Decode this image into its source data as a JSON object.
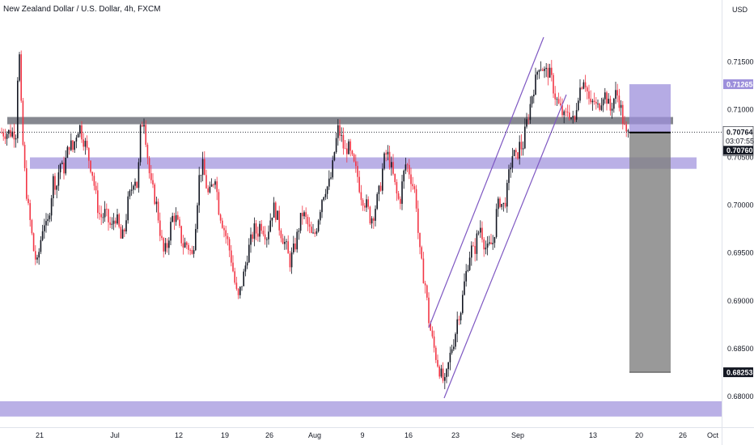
{
  "header": {
    "title": "New Zealand Dollar / U.S. Dollar, 4h, FXCM",
    "currency": "USD"
  },
  "colors": {
    "up": "#131722",
    "down": "#f23645",
    "zone": "#9c8fdb",
    "resistance": "#5d606b",
    "channel": "#7e57c2",
    "target_box": "#7f7f7f",
    "stop_box": "#9c8fdb"
  },
  "chart_data": {
    "type": "candlestick",
    "title": "New Zealand Dollar / U.S. Dollar, 4h, FXCM",
    "y_axis": {
      "unit": "USD",
      "ticks": [
        "0.71500",
        "0.71000",
        "0.70500",
        "0.70000",
        "0.69500",
        "0.69000",
        "0.68500",
        "0.68000"
      ],
      "range": [
        0.6775,
        0.7185
      ]
    },
    "x_axis": {
      "ticks": [
        "21",
        "Jul",
        "12",
        "19",
        "26",
        "Aug",
        "9",
        "16",
        "23",
        "Sep",
        "13",
        "20",
        "26",
        "Oct"
      ]
    },
    "price_labels": {
      "stop": "0.71265",
      "current": "0.70764",
      "countdown": "03:07:55",
      "entry": "0.70760",
      "target": "0.68253"
    },
    "levels": {
      "resistance": 0.7088,
      "support_zone": [
        0.7038,
        0.705
      ],
      "bottom_zone": [
        0.6779,
        0.6795
      ]
    },
    "trade": {
      "entry": 0.7076,
      "stop": 0.71265,
      "target": 0.68253
    },
    "path": [
      [
        21,
        0.7128
      ],
      [
        24,
        0.7155
      ],
      [
        27,
        0.7082
      ],
      [
        30,
        0.704
      ],
      [
        34,
        0.7002
      ],
      [
        38,
        0.6978
      ],
      [
        42,
        0.695
      ],
      [
        46,
        0.6938
      ],
      [
        50,
        0.6962
      ],
      [
        54,
        0.6985
      ],
      [
        58,
        0.6973
      ],
      [
        62,
        0.7001
      ],
      [
        66,
        0.7028
      ],
      [
        70,
        0.702
      ],
      [
        74,
        0.7045
      ],
      [
        78,
        0.7035
      ],
      [
        82,
        0.705
      ],
      [
        86,
        0.7066
      ],
      [
        90,
        0.7058
      ],
      [
        94,
        0.7074
      ],
      [
        98,
        0.7084
      ],
      [
        102,
        0.7072
      ],
      [
        106,
        0.7062
      ],
      [
        110,
        0.7048
      ],
      [
        114,
        0.7035
      ],
      [
        118,
        0.7012
      ],
      [
        122,
        0.6992
      ],
      [
        126,
        0.6987
      ],
      [
        130,
        0.6992
      ],
      [
        134,
        0.6983
      ],
      [
        138,
        0.6975
      ],
      [
        142,
        0.699
      ],
      [
        146,
        0.698
      ],
      [
        150,
        0.6962
      ],
      [
        154,
        0.6975
      ],
      [
        158,
        0.7002
      ],
      [
        162,
        0.7015
      ],
      [
        166,
        0.7032
      ],
      [
        170,
        0.7018
      ],
      [
        174,
        0.7084
      ],
      [
        178,
        0.709
      ],
      [
        182,
        0.7055
      ],
      [
        186,
        0.7022
      ],
      [
        190,
        0.7012
      ],
      [
        194,
        0.6998
      ],
      [
        198,
        0.6972
      ],
      [
        202,
        0.695
      ],
      [
        206,
        0.6955
      ],
      [
        210,
        0.6975
      ],
      [
        214,
        0.699
      ],
      [
        218,
        0.6985
      ],
      [
        222,
        0.6972
      ],
      [
        226,
        0.6958
      ],
      [
        230,
        0.696
      ],
      [
        234,
        0.6955
      ],
      [
        238,
        0.6945
      ],
      [
        242,
        0.6985
      ],
      [
        246,
        0.7028
      ],
      [
        250,
        0.7043
      ],
      [
        254,
        0.7025
      ],
      [
        258,
        0.7008
      ],
      [
        262,
        0.702
      ],
      [
        266,
        0.7032
      ],
      [
        270,
        0.6998
      ],
      [
        274,
        0.6985
      ],
      [
        278,
        0.6972
      ],
      [
        282,
        0.696
      ],
      [
        286,
        0.6943
      ],
      [
        290,
        0.692
      ],
      [
        294,
        0.69
      ],
      [
        298,
        0.6915
      ],
      [
        302,
        0.693
      ],
      [
        306,
        0.695
      ],
      [
        310,
        0.6962
      ],
      [
        314,
        0.6975
      ],
      [
        318,
        0.697
      ],
      [
        322,
        0.6982
      ],
      [
        326,
        0.6975
      ],
      [
        330,
        0.6968
      ],
      [
        334,
        0.6985
      ],
      [
        338,
        0.6998
      ],
      [
        342,
        0.699
      ],
      [
        346,
        0.6975
      ],
      [
        350,
        0.6965
      ],
      [
        354,
        0.6955
      ],
      [
        358,
        0.694
      ],
      [
        362,
        0.695
      ],
      [
        366,
        0.6962
      ],
      [
        370,
        0.698
      ],
      [
        374,
        0.6992
      ],
      [
        378,
        0.6985
      ],
      [
        382,
        0.6975
      ],
      [
        386,
        0.6965
      ],
      [
        390,
        0.6972
      ],
      [
        394,
        0.699
      ],
      [
        398,
        0.7008
      ],
      [
        402,
        0.7018
      ],
      [
        406,
        0.702
      ],
      [
        410,
        0.7032
      ],
      [
        414,
        0.706
      ],
      [
        418,
        0.708
      ],
      [
        422,
        0.707
      ],
      [
        426,
        0.7055
      ],
      [
        430,
        0.7062
      ],
      [
        434,
        0.705
      ],
      [
        438,
        0.704
      ],
      [
        442,
        0.703
      ],
      [
        446,
        0.7012
      ],
      [
        450,
        0.7005
      ],
      [
        454,
        0.6998
      ],
      [
        458,
        0.6985
      ],
      [
        462,
        0.6992
      ],
      [
        466,
        0.7005
      ],
      [
        470,
        0.7018
      ],
      [
        474,
        0.7045
      ],
      [
        478,
        0.7055
      ],
      [
        482,
        0.7045
      ],
      [
        486,
        0.703
      ],
      [
        490,
        0.7012
      ],
      [
        494,
        0.7002
      ],
      [
        498,
        0.7028
      ],
      [
        502,
        0.7045
      ],
      [
        506,
        0.7035
      ],
      [
        510,
        0.7022
      ],
      [
        514,
        0.701
      ],
      [
        518,
        0.6955
      ],
      [
        522,
        0.6932
      ],
      [
        526,
        0.6915
      ],
      [
        530,
        0.688
      ],
      [
        534,
        0.686
      ],
      [
        538,
        0.6845
      ],
      [
        542,
        0.6832
      ],
      [
        546,
        0.682
      ],
      [
        550,
        0.6812
      ],
      [
        554,
        0.6832
      ],
      [
        558,
        0.685
      ],
      [
        562,
        0.6862
      ],
      [
        566,
        0.6885
      ],
      [
        570,
        0.6892
      ],
      [
        574,
        0.6918
      ],
      [
        578,
        0.6938
      ],
      [
        582,
        0.6955
      ],
      [
        586,
        0.695
      ],
      [
        590,
        0.6968
      ],
      [
        594,
        0.6978
      ],
      [
        598,
        0.6962
      ],
      [
        602,
        0.6952
      ],
      [
        606,
        0.6958
      ],
      [
        610,
        0.6962
      ],
      [
        614,
        0.6995
      ],
      [
        618,
        0.7005
      ],
      [
        622,
        0.6998
      ],
      [
        626,
        0.701
      ],
      [
        630,
        0.7038
      ],
      [
        634,
        0.7055
      ],
      [
        638,
        0.7048
      ],
      [
        642,
        0.7062
      ],
      [
        646,
        0.706
      ],
      [
        650,
        0.7082
      ],
      [
        654,
        0.7098
      ],
      [
        658,
        0.7118
      ],
      [
        662,
        0.713
      ],
      [
        666,
        0.7148
      ],
      [
        670,
        0.7145
      ],
      [
        674,
        0.7138
      ],
      [
        678,
        0.714
      ],
      [
        682,
        0.713
      ],
      [
        686,
        0.7115
      ],
      [
        690,
        0.7105
      ],
      [
        694,
        0.7098
      ],
      [
        698,
        0.709
      ],
      [
        702,
        0.71
      ],
      [
        706,
        0.7092
      ],
      [
        710,
        0.7085
      ],
      [
        714,
        0.7115
      ],
      [
        718,
        0.7125
      ],
      [
        722,
        0.7135
      ],
      [
        726,
        0.7118
      ],
      [
        730,
        0.7102
      ],
      [
        734,
        0.711
      ],
      [
        738,
        0.71
      ],
      [
        742,
        0.7108
      ],
      [
        746,
        0.7118
      ],
      [
        750,
        0.7112
      ],
      [
        754,
        0.7098
      ],
      [
        758,
        0.711
      ],
      [
        762,
        0.7118
      ],
      [
        766,
        0.7108
      ],
      [
        770,
        0.7088
      ],
      [
        774,
        0.7072
      ],
      [
        778,
        0.7076
      ]
    ]
  }
}
